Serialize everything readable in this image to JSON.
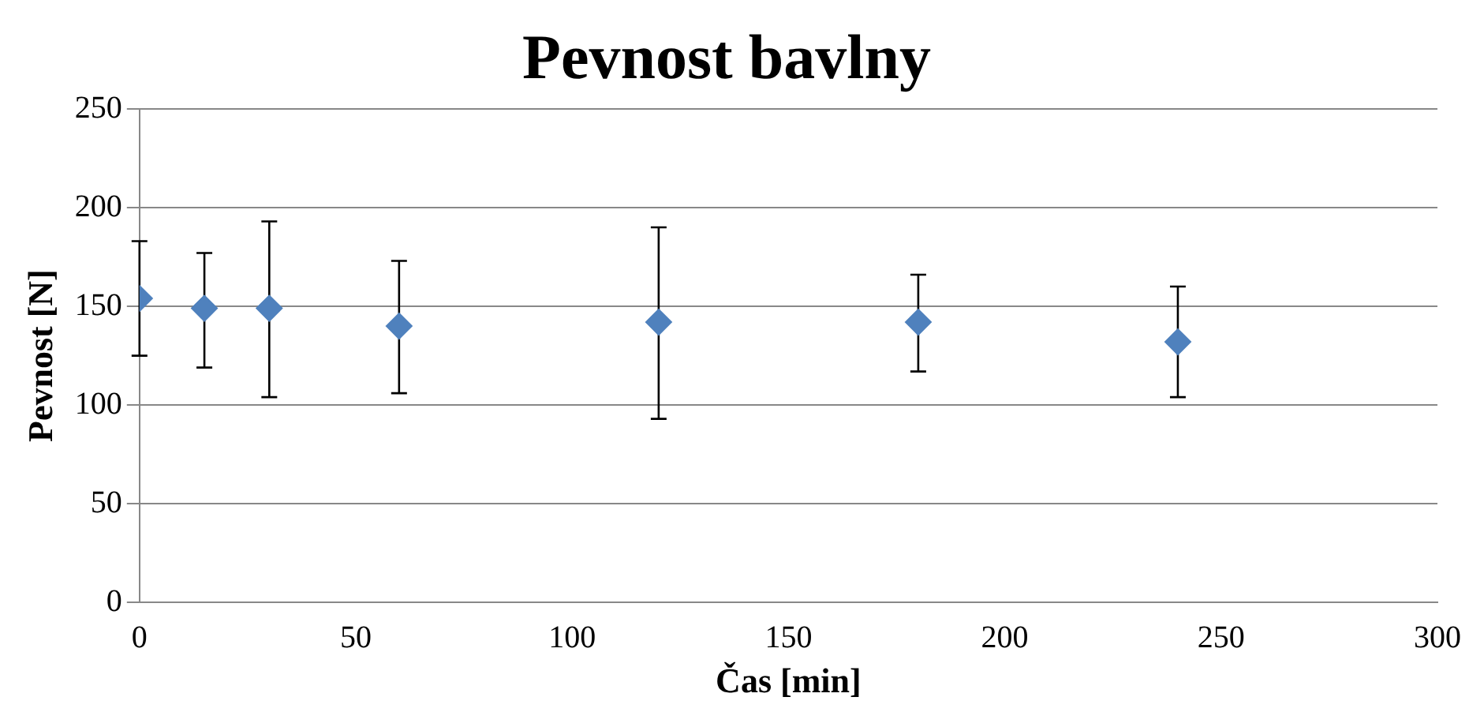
{
  "chart_data": {
    "type": "scatter",
    "title": "Pevnost bavlny",
    "xlabel": "Čas [min]",
    "ylabel": "Pevnost [N]",
    "x": [
      0,
      15,
      30,
      60,
      120,
      180,
      240
    ],
    "series": [
      {
        "color": "#4f81bd",
        "values": [
          154,
          149,
          149,
          140,
          142,
          142,
          132
        ],
        "errors": [
          [
            125,
            183
          ],
          [
            119,
            177
          ],
          [
            104,
            193
          ],
          [
            106,
            173
          ],
          [
            93,
            190
          ],
          [
            117,
            166
          ],
          [
            104,
            160
          ]
        ]
      }
    ],
    "xlim": [
      0,
      300
    ],
    "xticks": [
      0,
      50,
      100,
      150,
      200,
      250,
      300
    ],
    "ylim": [
      0,
      250
    ],
    "yticks": [
      0,
      50,
      100,
      150,
      200,
      250
    ],
    "grid": "y",
    "legend": false,
    "marker": "diamond"
  }
}
